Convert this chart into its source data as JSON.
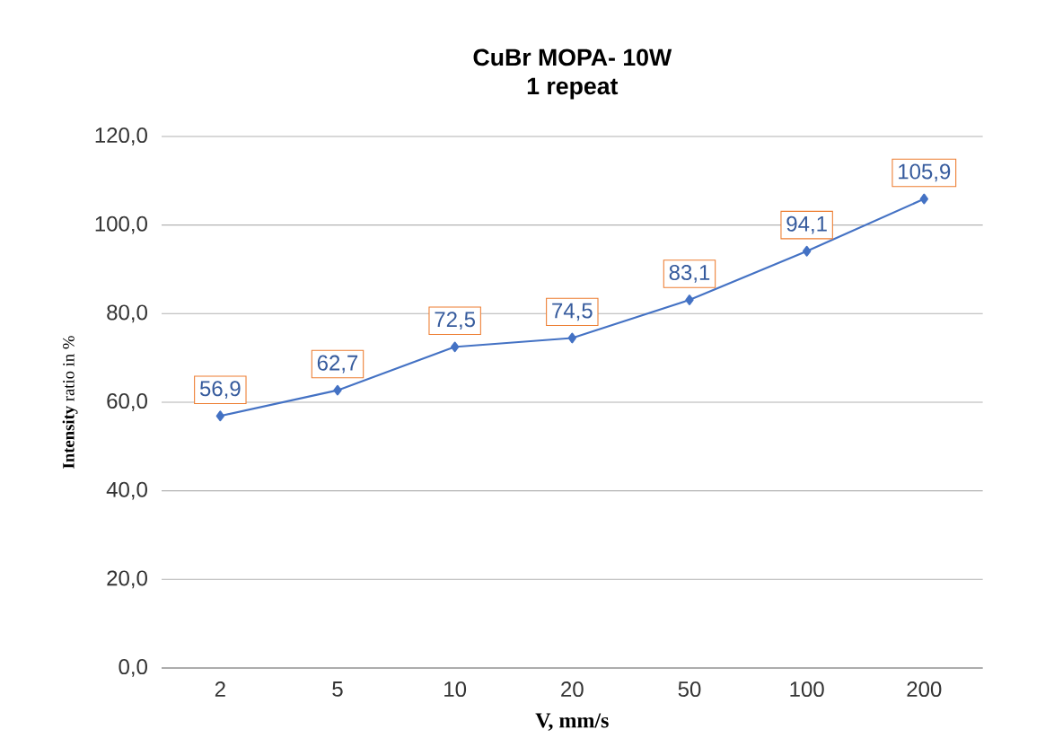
{
  "chart_data": {
    "type": "line",
    "title": "CuBr MOPA- 10W",
    "subtitle": "1 repeat",
    "xlabel": "V, mm/s",
    "ylabel": "**Intensity** ratio in %",
    "categories": [
      "2",
      "5",
      "10",
      "20",
      "50",
      "100",
      "200"
    ],
    "values": [
      56.9,
      62.7,
      72.5,
      74.5,
      83.1,
      94.1,
      105.9
    ],
    "value_labels": [
      "56,9",
      "62,7",
      "72,5",
      "74,5",
      "83,1",
      "94,1",
      "105,9"
    ],
    "color": "#4472c4",
    "marker": "diamond",
    "grid": "y",
    "ylim": [
      0,
      120
    ],
    "yticks": [
      {
        "value": 0,
        "label": "0,0"
      },
      {
        "value": 20,
        "label": "20,0"
      },
      {
        "value": 40,
        "label": "40,0"
      },
      {
        "value": 60,
        "label": "60,0"
      },
      {
        "value": 80,
        "label": "80,0"
      },
      {
        "value": 100,
        "label": "100,0"
      },
      {
        "value": 120,
        "label": "120,0"
      }
    ]
  }
}
